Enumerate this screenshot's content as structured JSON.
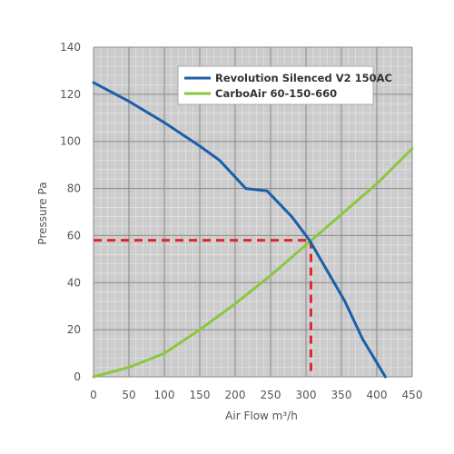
{
  "chart_data": {
    "type": "line",
    "xlabel": "Air Flow m³/h",
    "ylabel": "Pressure Pa",
    "xlim": [
      0,
      450
    ],
    "ylim": [
      0,
      140
    ],
    "x_ticks": [
      0,
      50,
      100,
      150,
      200,
      250,
      300,
      350,
      400,
      450
    ],
    "y_ticks": [
      0,
      20,
      40,
      60,
      80,
      100,
      120,
      140
    ],
    "x_tick_labels": [
      "0",
      "50",
      "100",
      "150",
      "200",
      "250",
      "300",
      "350",
      "400",
      "450"
    ],
    "y_tick_labels": [
      "0",
      "20",
      "40",
      "60",
      "80",
      "100",
      "120",
      "140"
    ],
    "grid": true,
    "legend_position": "top-right",
    "series": [
      {
        "name": "Revolution Silenced V2 150AC",
        "color": "#1a5fa8",
        "points": [
          [
            0,
            125
          ],
          [
            50,
            117
          ],
          [
            100,
            108
          ],
          [
            150,
            98
          ],
          [
            178,
            92
          ],
          [
            215,
            80
          ],
          [
            245,
            79
          ],
          [
            280,
            68
          ],
          [
            305,
            58
          ],
          [
            330,
            45
          ],
          [
            355,
            32
          ],
          [
            380,
            16
          ],
          [
            412,
            0
          ]
        ]
      },
      {
        "name": "CarboAir 60-150-660",
        "color": "#8dc63f",
        "points": [
          [
            0,
            0
          ],
          [
            50,
            4
          ],
          [
            100,
            10
          ],
          [
            150,
            20
          ],
          [
            200,
            31
          ],
          [
            250,
            43
          ],
          [
            300,
            56
          ],
          [
            350,
            69
          ],
          [
            400,
            82
          ],
          [
            450,
            97
          ]
        ]
      }
    ],
    "annotation": {
      "type": "intersection-guide",
      "x": 307,
      "y": 58,
      "color": "#e0262d",
      "style": "dashed"
    }
  }
}
